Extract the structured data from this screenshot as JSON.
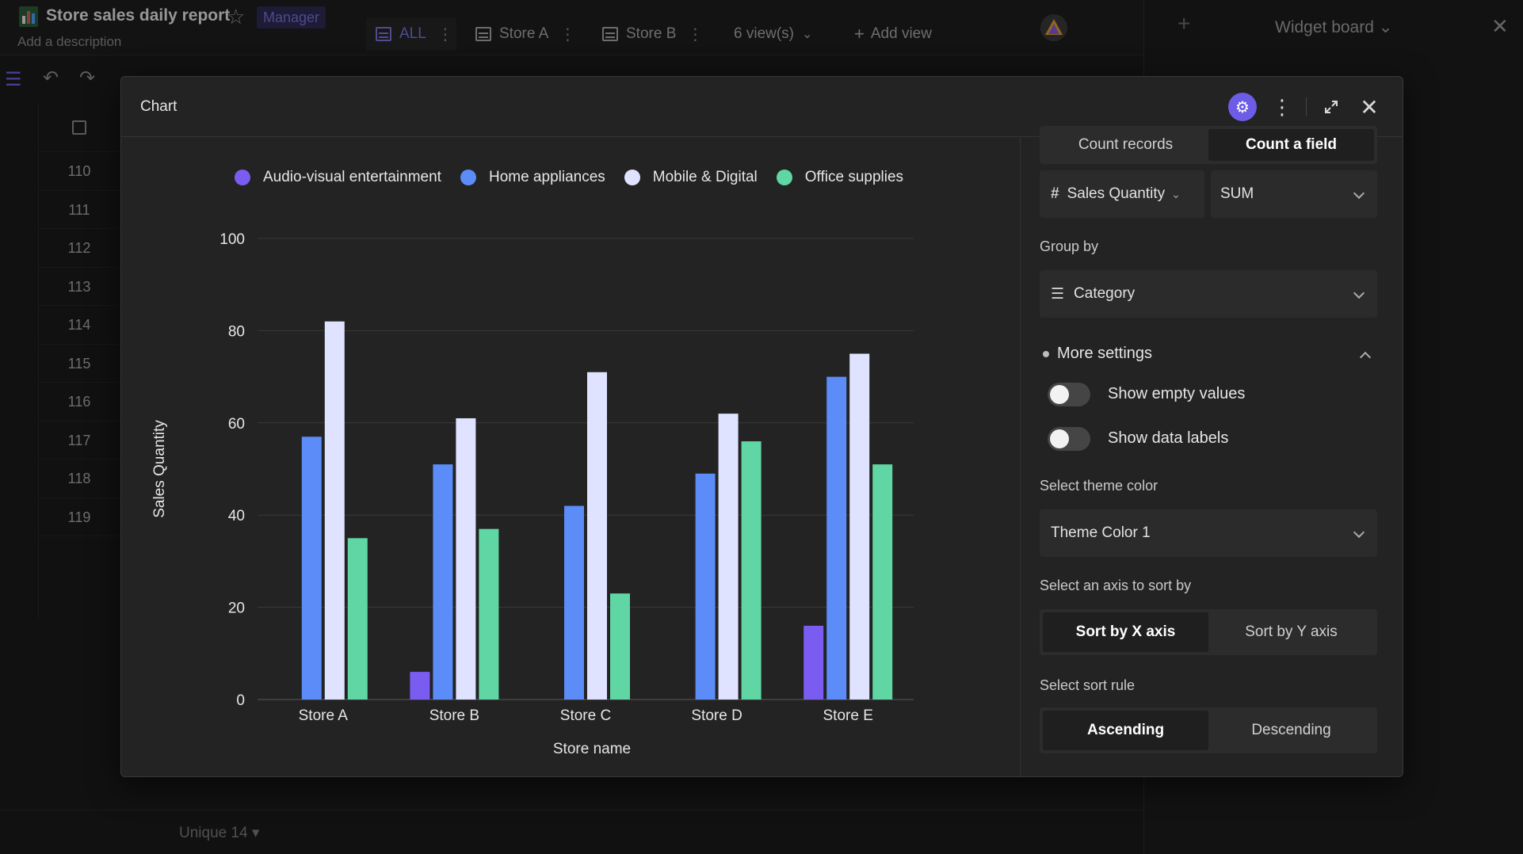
{
  "app": {
    "doc_title": "Store sales daily report",
    "role_badge": "Manager",
    "description_placeholder": "Add a description",
    "tabs": [
      {
        "label": "ALL"
      },
      {
        "label": "Store A"
      },
      {
        "label": "Store B"
      },
      {
        "label": "6 view(s)"
      },
      {
        "label": "Add view"
      }
    ],
    "row_numbers": [
      "110",
      "111",
      "112",
      "113",
      "114",
      "115",
      "116",
      "117",
      "118",
      "119"
    ],
    "footer_summary": "Unique 14 ▾",
    "widget_board_title": "Widget board"
  },
  "modal": {
    "title": "Chart"
  },
  "chart_data": {
    "type": "bar",
    "categories": [
      "Store A",
      "Store B",
      "Store C",
      "Store D",
      "Store E"
    ],
    "series": [
      {
        "name": "Audio-visual entertainment",
        "values": [
          0,
          6,
          0,
          0,
          16
        ]
      },
      {
        "name": "Home appliances",
        "values": [
          57,
          51,
          42,
          49,
          70
        ]
      },
      {
        "name": "Mobile & Digital",
        "values": [
          82,
          61,
          71,
          62,
          75
        ]
      },
      {
        "name": "Office supplies",
        "values": [
          35,
          37,
          23,
          56,
          51
        ]
      }
    ],
    "series_colors": [
      "#7b5cf0",
      "#5b8cf7",
      "#dfe3ff",
      "#5fd6a4"
    ],
    "xlabel": "Store name",
    "ylabel": "Sales Quantity",
    "ylim": [
      0,
      100
    ],
    "yticks": [
      0,
      20,
      40,
      60,
      80,
      100
    ],
    "legend_position": "top",
    "grid": true
  },
  "settings": {
    "count_records": "Count records",
    "count_field": "Count a field",
    "field_select": "Sales Quantity",
    "agg_select": "SUM",
    "group_by_label": "Group by",
    "group_by_value": "Category",
    "more_settings": "More settings",
    "show_empty_values": "Show empty values",
    "show_data_labels": "Show data labels",
    "theme_label": "Select theme color",
    "theme_value": "Theme Color 1",
    "sort_axis_label": "Select an axis to sort by",
    "sort_x": "Sort by X axis",
    "sort_y": "Sort by Y axis",
    "sort_rule_label": "Select sort rule",
    "ascending": "Ascending",
    "descending": "Descending"
  }
}
